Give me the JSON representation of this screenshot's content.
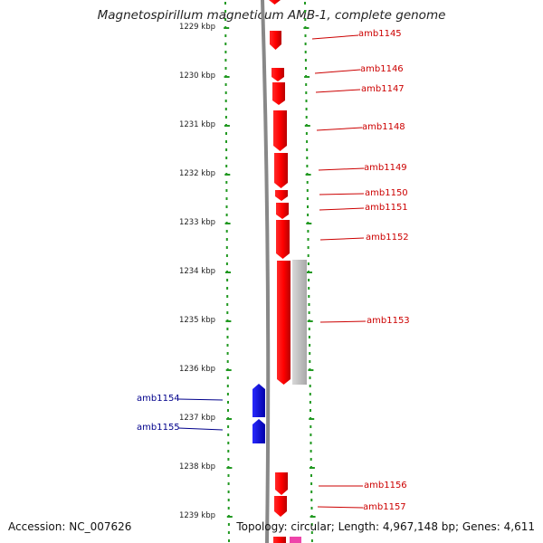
{
  "title": "Magnetospirillum magneticum AMB-1, complete genome",
  "ticks": [
    {
      "label": "1229 kbp"
    },
    {
      "label": "1230 kbp"
    },
    {
      "label": "1231 kbp"
    },
    {
      "label": "1232 kbp"
    },
    {
      "label": "1233 kbp"
    },
    {
      "label": "1234 kbp"
    },
    {
      "label": "1235 kbp"
    },
    {
      "label": "1236 kbp"
    },
    {
      "label": "1237 kbp"
    },
    {
      "label": "1238 kbp"
    },
    {
      "label": "1239 kbp"
    }
  ],
  "genes_forward": [
    {
      "name": "amb1145"
    },
    {
      "name": "amb1146"
    },
    {
      "name": "amb1147"
    },
    {
      "name": "amb1148"
    },
    {
      "name": "amb1149"
    },
    {
      "name": "amb1150"
    },
    {
      "name": "amb1151"
    },
    {
      "name": "amb1152"
    },
    {
      "name": "amb1153"
    },
    {
      "name": "amb1156"
    },
    {
      "name": "amb1157"
    }
  ],
  "genes_reverse": [
    {
      "name": "amb1154"
    },
    {
      "name": "amb1155"
    }
  ],
  "footer": {
    "accession": "Accession: NC_007626",
    "topology": "Topology: circular; Length: 4,967,148 bp; Genes: 4,611"
  },
  "colors": {
    "forward": "#ff0000",
    "reverse": "#0000ff",
    "tick": "#229922",
    "backbone": "#888888",
    "feature_grey": "#bbbbbb",
    "feature_pink": "#ee44aa"
  }
}
